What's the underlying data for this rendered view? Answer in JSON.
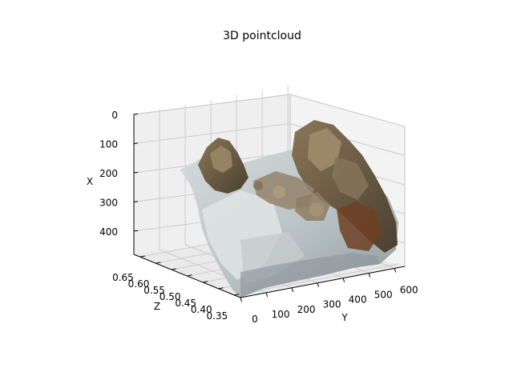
{
  "chart_data": {
    "type": "scatter",
    "title": "3D pointcloud",
    "xlabel": "X",
    "ylabel": "Y",
    "zlabel": "Z",
    "x_ticks": [
      "0",
      "100",
      "200",
      "300",
      "400"
    ],
    "y_ticks": [
      "0",
      "100",
      "200",
      "300",
      "400",
      "500",
      "600"
    ],
    "z_ticks": [
      "0.65",
      "0.60",
      "0.55",
      "0.50",
      "0.45",
      "0.40",
      "0.35"
    ],
    "xlim": [
      0,
      480
    ],
    "ylim": [
      0,
      640
    ],
    "zlim": [
      0.33,
      0.67
    ],
    "grid": true,
    "colors": {
      "sand_light": "#cfd6d8",
      "sand_mid": "#a9b2b1",
      "rock_brown": "#7d6a4e",
      "rock_dark": "#4f4232",
      "rust": "#6e3f24",
      "grey_blue": "#8c949b"
    }
  }
}
